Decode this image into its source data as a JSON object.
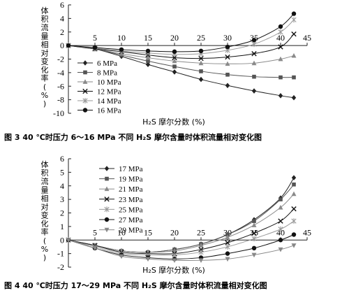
{
  "chart_data": [
    {
      "type": "line",
      "x": [
        0,
        5,
        10,
        15,
        20,
        25,
        30,
        35,
        40,
        42.5
      ],
      "xticks": [
        5,
        10,
        15,
        20,
        25,
        30,
        35,
        40,
        45
      ],
      "yticks": [
        -10,
        -8,
        -6,
        -4,
        -2,
        0,
        2,
        4,
        6
      ],
      "xlim": [
        0,
        45
      ],
      "ylim": [
        -10,
        6
      ],
      "ylabel": "体积流量相对变化率 (%)",
      "xlabel": "H₂S 摩尔分数 (%)",
      "legend_position": "lower-left",
      "series": [
        {
          "name": "6 MPa",
          "marker": "diamond",
          "values": [
            0,
            -0.5,
            -1.6,
            -2.8,
            -3.9,
            -5.0,
            -5.9,
            -6.7,
            -7.4,
            -7.7
          ]
        },
        {
          "name": "8 MPa",
          "marker": "square",
          "values": [
            0,
            -0.5,
            -1.4,
            -2.3,
            -3.1,
            -3.8,
            -4.3,
            -4.6,
            -4.7,
            -4.7
          ]
        },
        {
          "name": "10 MPa",
          "marker": "triangle",
          "values": [
            0,
            -0.5,
            -1.2,
            -1.8,
            -2.3,
            -2.6,
            -2.7,
            -2.6,
            -2.0,
            -1.5
          ]
        },
        {
          "name": "12 MPa",
          "marker": "x",
          "values": [
            0,
            -0.5,
            -0.9,
            -1.4,
            -1.8,
            -1.9,
            -1.7,
            -1.2,
            -0.2,
            1.7
          ]
        },
        {
          "name": "14 MPa",
          "marker": "star",
          "values": [
            0,
            -0.4,
            -0.8,
            -1.1,
            -1.3,
            -1.2,
            -0.7,
            0.2,
            2.0,
            3.8
          ]
        },
        {
          "name": "16 MPa",
          "marker": "circle",
          "values": [
            0,
            -0.3,
            -0.6,
            -0.8,
            -0.9,
            -0.8,
            -0.2,
            0.8,
            2.8,
            4.7
          ]
        }
      ]
    },
    {
      "type": "line",
      "x": [
        0,
        5,
        10,
        15,
        20,
        25,
        30,
        35,
        40,
        42.5
      ],
      "xticks": [
        5,
        10,
        15,
        20,
        25,
        30,
        35,
        40,
        45
      ],
      "yticks": [
        -2,
        -1,
        0,
        1,
        2,
        3,
        4,
        5,
        6
      ],
      "xlim": [
        0,
        45
      ],
      "ylim": [
        -2,
        6
      ],
      "ylabel": "体积流量相对变化率 (%)",
      "xlabel": "H₂S 摩尔分数 (%)",
      "legend_position": "top-left",
      "series": [
        {
          "name": "17 MPa",
          "marker": "diamond",
          "values": [
            0,
            -0.4,
            -0.8,
            -0.9,
            -0.7,
            -0.3,
            0.4,
            1.5,
            3.1,
            4.6
          ]
        },
        {
          "name": "19 MPa",
          "marker": "square",
          "values": [
            0,
            -0.4,
            -0.8,
            -0.9,
            -0.7,
            -0.3,
            0.4,
            1.4,
            3.0,
            4.1
          ]
        },
        {
          "name": "21 MPa",
          "marker": "triangle",
          "values": [
            0,
            -0.4,
            -0.8,
            -0.9,
            -0.8,
            -0.4,
            0.2,
            1.1,
            2.4,
            3.4
          ]
        },
        {
          "name": "23 MPa",
          "marker": "x",
          "values": [
            0,
            -0.4,
            -0.9,
            -1.0,
            -1.0,
            -0.7,
            -0.2,
            0.5,
            1.4,
            2.3
          ]
        },
        {
          "name": "25 MPa",
          "marker": "star",
          "values": [
            0,
            -0.5,
            -1.0,
            -1.1,
            -1.1,
            -0.9,
            -0.5,
            0.1,
            0.8,
            1.4
          ]
        },
        {
          "name": "27 MPa",
          "marker": "circle",
          "values": [
            0,
            -0.6,
            -1.1,
            -1.3,
            -1.4,
            -1.3,
            -1.0,
            -0.6,
            0.0,
            0.4
          ]
        },
        {
          "name": "29 MPa",
          "marker": "triangle-down",
          "values": [
            0,
            -0.6,
            -1.2,
            -1.4,
            -1.5,
            -1.5,
            -1.4,
            -1.1,
            -0.7,
            -0.4
          ]
        }
      ]
    }
  ],
  "captions": {
    "fig3": "图 3   40 ℃时压力 6～16 MPa 不同 H₂S 摩尔含量时体积流量相对变化图",
    "fig4": "图 4   40 ℃时压力 17～29 MPa 不同 H₂S 摩尔含量时体积流量相对变化图"
  },
  "colors": {
    "axis": "#222222",
    "series": [
      "#222222",
      "#555555",
      "#8a8a8a",
      "#111111",
      "#9a9a9a",
      "#111111",
      "#888888"
    ]
  }
}
